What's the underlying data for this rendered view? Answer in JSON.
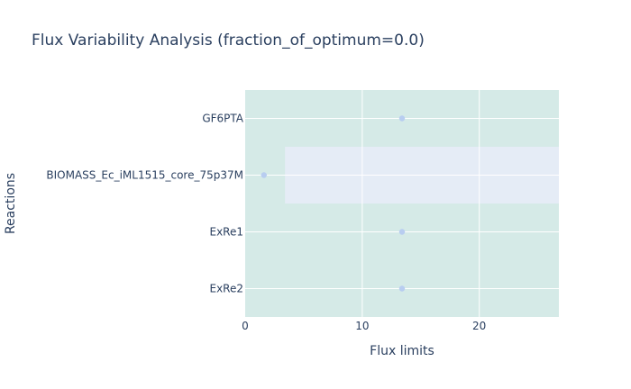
{
  "chart_data": {
    "type": "scatter",
    "title": "Flux Variability Analysis (fraction_of_optimum=0.0)",
    "xlabel": "Flux limits",
    "ylabel": "Reactions",
    "xlim": [
      0,
      26.8
    ],
    "x_ticks": [
      "0",
      "10",
      "20"
    ],
    "x_tick_values": [
      0,
      10,
      20
    ],
    "grid": true,
    "legend": "none",
    "categories": [
      "GF6PTA",
      "BIOMASS_Ec_iML1515_core_75p37M",
      "ExRe1",
      "ExRe2"
    ],
    "points": [
      {
        "reaction": "GF6PTA",
        "x": 13.4
      },
      {
        "reaction": "BIOMASS_Ec_iML1515_core_75p37M",
        "x": 1.6
      },
      {
        "reaction": "ExRe1",
        "x": 13.4
      },
      {
        "reaction": "ExRe2",
        "x": 13.4
      }
    ],
    "ranges": [
      {
        "reaction": "BIOMASS_Ec_iML1515_core_75p37M",
        "min": 3.4,
        "max": 26.8
      }
    ],
    "colors": {
      "plot_bg": "#d5eae7",
      "band": "#e5ecf6",
      "grid": "#ffffff",
      "marker": "#b8cdf0",
      "text": "#2a3f5f"
    }
  }
}
